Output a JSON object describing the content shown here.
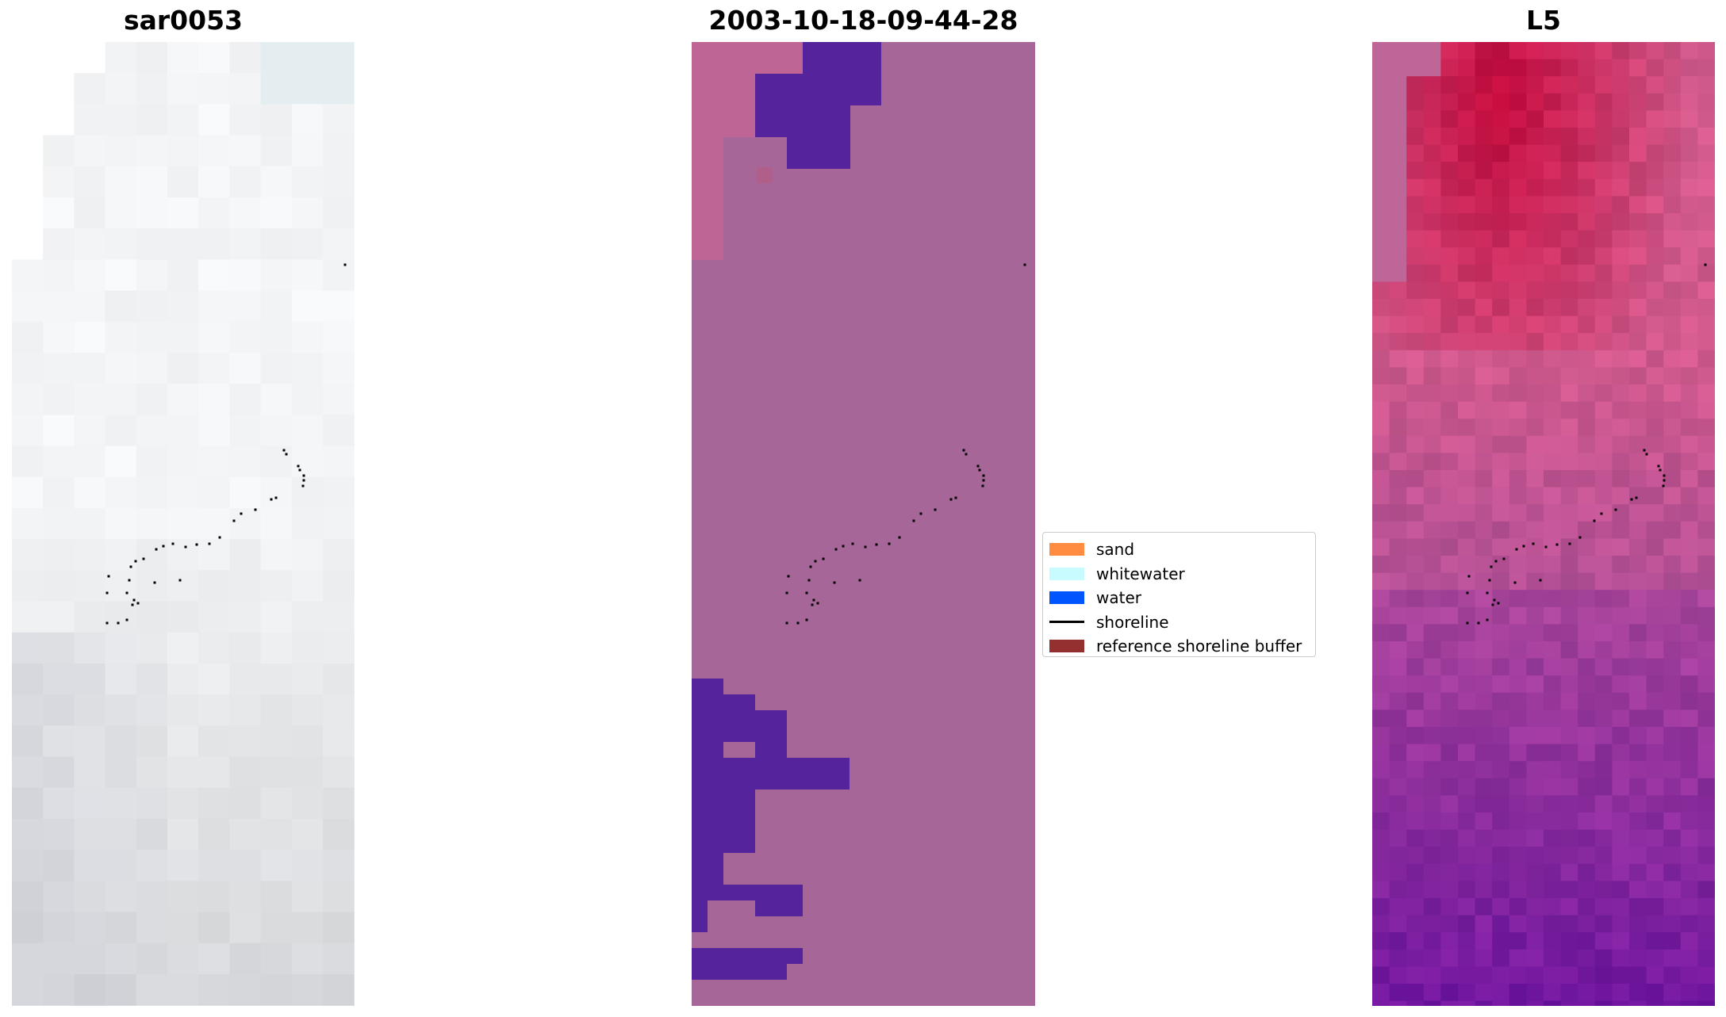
{
  "panels": [
    {
      "title": "sar0053"
    },
    {
      "title": "2003-10-18-09-44-28"
    },
    {
      "title": "L5"
    }
  ],
  "legend": {
    "items": [
      {
        "label": "sand",
        "kind": "patch",
        "color": "#ff8c40"
      },
      {
        "label": "whitewater",
        "kind": "patch",
        "color": "#c8fbff"
      },
      {
        "label": "water",
        "kind": "patch",
        "color": "#0055ff"
      },
      {
        "label": "shoreline",
        "kind": "line",
        "color": "#000000"
      },
      {
        "label": "reference shoreline buffer",
        "kind": "patch",
        "color": "#943030"
      }
    ]
  },
  "colors": {
    "classification_background": "#a66698",
    "classification_upper_left": "#be6595",
    "classification_patch": "#55239b",
    "shoreline_points": "#000000"
  }
}
